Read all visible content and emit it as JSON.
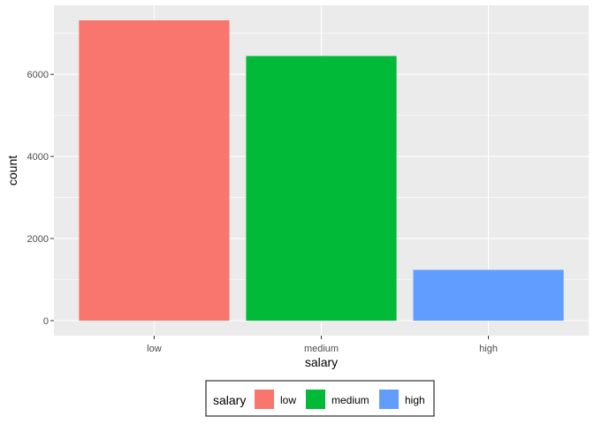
{
  "chart_data": {
    "type": "bar",
    "categories": [
      "low",
      "medium",
      "high"
    ],
    "values": [
      7316,
      6446,
      1237
    ],
    "colors": [
      "#F8766D",
      "#00BA38",
      "#619CFF"
    ],
    "xlabel": "salary",
    "ylabel": "count",
    "ylim": [
      -366,
      7682
    ],
    "yticks": [
      0,
      2000,
      4000,
      6000
    ],
    "grid": true,
    "panel_background": "#EBEBEB",
    "legend": {
      "title": "salary",
      "position": "bottom",
      "entries": [
        "low",
        "medium",
        "high"
      ]
    }
  }
}
